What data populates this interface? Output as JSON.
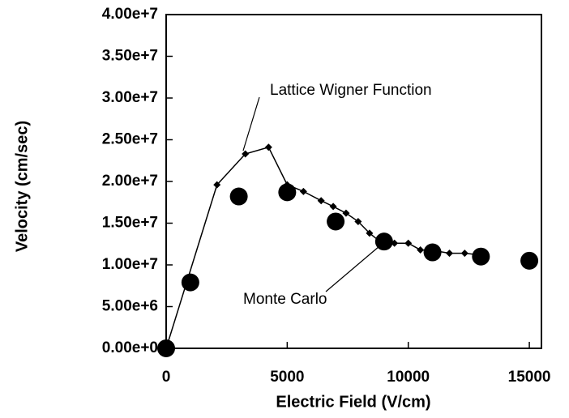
{
  "chart_data": {
    "type": "line",
    "xlabel": "Electric Field (V/cm)",
    "ylabel": "Velocity (cm/sec)",
    "annotations": [
      "Lattice Wigner Function",
      "Monte Carlo"
    ],
    "xlim": [
      0,
      15500
    ],
    "ylim": [
      0,
      40000000
    ],
    "xticks": [
      0,
      5000,
      10000,
      15000
    ],
    "yticks": [
      {
        "value": 0,
        "label": "0.00e+0"
      },
      {
        "value": 5000000,
        "label": "5.00e+6"
      },
      {
        "value": 10000000,
        "label": "1.00e+7"
      },
      {
        "value": 15000000,
        "label": "1.50e+7"
      },
      {
        "value": 20000000,
        "label": "2.00e+7"
      },
      {
        "value": 25000000,
        "label": "2.50e+7"
      },
      {
        "value": 30000000,
        "label": "3.00e+7"
      },
      {
        "value": 35000000,
        "label": "3.50e+7"
      },
      {
        "value": 40000000,
        "label": "4.00e+7"
      }
    ],
    "series": [
      {
        "name": "Lattice Wigner Function",
        "color": "#000000",
        "marker": "diamond",
        "x": [
          0,
          2100,
          3270,
          4230,
          5000,
          5670,
          6400,
          6900,
          7430,
          7930,
          8400,
          8830,
          9430,
          10000,
          10500,
          11100,
          11700,
          12330,
          12930
        ],
        "values": [
          0,
          19600000,
          23300000,
          24100000,
          19600000,
          18800000,
          17700000,
          17000000,
          16200000,
          15200000,
          13800000,
          12800000,
          12600000,
          12600000,
          11800000,
          11700000,
          11400000,
          11400000,
          11200000
        ]
      },
      {
        "name": "Monte Carlo",
        "color": "#000000",
        "marker": "circle",
        "x": [
          0,
          1000,
          3000,
          5000,
          7000,
          9000,
          11000,
          13000,
          15000
        ],
        "values": [
          0,
          7900000,
          18200000,
          18700000,
          15200000,
          12800000,
          11500000,
          11000000,
          10500000
        ]
      }
    ]
  }
}
